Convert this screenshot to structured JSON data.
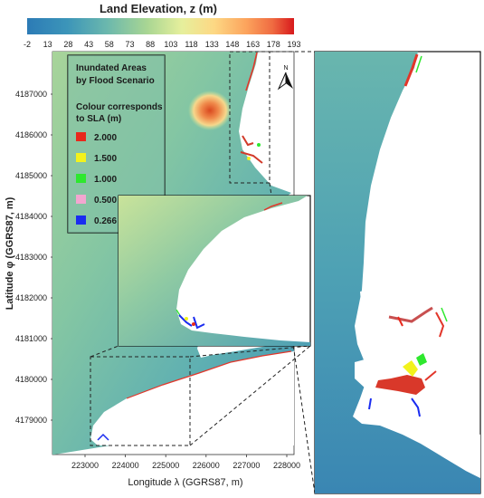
{
  "colorbar": {
    "title": "Land Elevation, z (m)",
    "ticks": [
      "-2",
      "13",
      "28",
      "43",
      "58",
      "73",
      "88",
      "103",
      "118",
      "133",
      "148",
      "163",
      "178",
      "193"
    ],
    "colors": [
      "#2c7bb6",
      "#4aa2b9",
      "#7dc2a8",
      "#b8dc8f",
      "#e7f0a0",
      "#fde08b",
      "#fdae61",
      "#f46d43",
      "#d7191c"
    ]
  },
  "legend": {
    "title_line1": "Inundated Areas",
    "title_line2": "by Flood Scenario",
    "subtitle_line1": "Colour corresponds",
    "subtitle_line2": "to SLA (m)",
    "items": [
      {
        "label": "2.000",
        "color": "#e8281c"
      },
      {
        "label": "1.500",
        "color": "#f2f21c"
      },
      {
        "label": "1.000",
        "color": "#2ee82e"
      },
      {
        "label": "0.500",
        "color": "#f3a6d0"
      },
      {
        "label": "0.266",
        "color": "#1a2cf0"
      }
    ]
  },
  "axes": {
    "y_label": "Latitude φ (GGRS87, m)",
    "x_label": "Longitude λ (GGRS87, m)",
    "y_ticks": [
      "4187000",
      "4186000",
      "4185000",
      "4184000",
      "4183000",
      "4182000",
      "4181000",
      "4180000",
      "4179000"
    ],
    "x_ticks": [
      "223000",
      "224000",
      "225000",
      "226000",
      "227000",
      "228000"
    ]
  },
  "north_arrow": {
    "label": "N"
  }
}
